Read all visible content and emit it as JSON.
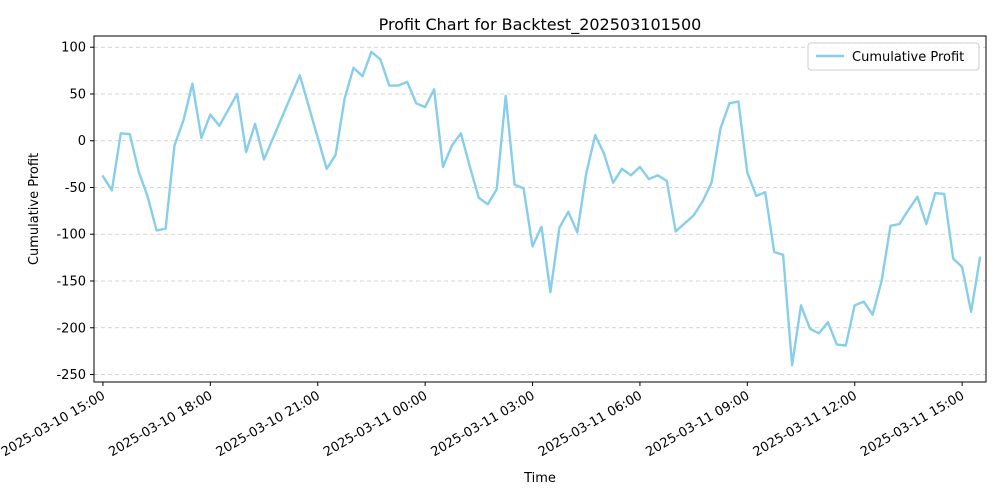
{
  "chart_data": {
    "type": "line",
    "title": "Profit Chart for Backtest_202503101500",
    "xlabel": "Time",
    "ylabel": "Cumulative Profit",
    "ylim": [
      -258,
      112
    ],
    "xlim": [
      "2025-03-10 14:45",
      "2025-03-11 15:40"
    ],
    "grid": "horizontal dashed",
    "legend_position": "top-right",
    "x_tick_labels": [
      "2025-03-10 15:00",
      "2025-03-10 18:00",
      "2025-03-10 21:00",
      "2025-03-11 00:00",
      "2025-03-11 03:00",
      "2025-03-11 06:00",
      "2025-03-11 09:00",
      "2025-03-11 12:00",
      "2025-03-11 15:00"
    ],
    "y_ticks": [
      100,
      50,
      0,
      -50,
      -100,
      -150,
      -200,
      -250
    ],
    "series": [
      {
        "name": "Cumulative Profit",
        "color": "#87ceeb",
        "points": [
          [
            "2025-03-10 15:00",
            -38
          ],
          [
            "2025-03-10 15:15",
            -53
          ],
          [
            "2025-03-10 15:30",
            8
          ],
          [
            "2025-03-10 15:45",
            7
          ],
          [
            "2025-03-10 16:00",
            -33
          ],
          [
            "2025-03-10 16:15",
            -60
          ],
          [
            "2025-03-10 16:30",
            -96
          ],
          [
            "2025-03-10 16:45",
            -94
          ],
          [
            "2025-03-10 17:00",
            -5
          ],
          [
            "2025-03-10 17:15",
            22
          ],
          [
            "2025-03-10 17:30",
            61
          ],
          [
            "2025-03-10 17:45",
            3
          ],
          [
            "2025-03-10 18:00",
            28
          ],
          [
            "2025-03-10 18:15",
            16
          ],
          [
            "2025-03-10 18:30",
            33
          ],
          [
            "2025-03-10 18:45",
            50
          ],
          [
            "2025-03-10 19:00",
            -12
          ],
          [
            "2025-03-10 19:15",
            18
          ],
          [
            "2025-03-10 19:30",
            -20
          ],
          [
            "2025-03-10 20:30",
            70
          ],
          [
            "2025-03-10 21:15",
            -30
          ],
          [
            "2025-03-10 21:30",
            -15
          ],
          [
            "2025-03-10 21:45",
            45
          ],
          [
            "2025-03-10 22:00",
            78
          ],
          [
            "2025-03-10 22:15",
            69
          ],
          [
            "2025-03-10 22:30",
            95
          ],
          [
            "2025-03-10 22:45",
            87
          ],
          [
            "2025-03-10 23:00",
            59
          ],
          [
            "2025-03-10 23:15",
            59
          ],
          [
            "2025-03-10 23:30",
            63
          ],
          [
            "2025-03-10 23:45",
            40
          ],
          [
            "2025-03-11 00:00",
            36
          ],
          [
            "2025-03-11 00:15",
            55
          ],
          [
            "2025-03-11 00:30",
            -28
          ],
          [
            "2025-03-11 00:45",
            -5
          ],
          [
            "2025-03-11 01:00",
            8
          ],
          [
            "2025-03-11 01:15",
            -28
          ],
          [
            "2025-03-11 01:30",
            -61
          ],
          [
            "2025-03-11 01:45",
            -68
          ],
          [
            "2025-03-11 02:00",
            -52
          ],
          [
            "2025-03-11 02:15",
            48
          ],
          [
            "2025-03-11 02:30",
            -47
          ],
          [
            "2025-03-11 02:45",
            -51
          ],
          [
            "2025-03-11 03:00",
            -113
          ],
          [
            "2025-03-11 03:15",
            -92
          ],
          [
            "2025-03-11 03:30",
            -162
          ],
          [
            "2025-03-11 03:45",
            -93
          ],
          [
            "2025-03-11 04:00",
            -76
          ],
          [
            "2025-03-11 04:15",
            -98
          ],
          [
            "2025-03-11 04:30",
            -35
          ],
          [
            "2025-03-11 04:45",
            6
          ],
          [
            "2025-03-11 05:00",
            -14
          ],
          [
            "2025-03-11 05:15",
            -45
          ],
          [
            "2025-03-11 05:30",
            -30
          ],
          [
            "2025-03-11 05:45",
            -37
          ],
          [
            "2025-03-11 06:00",
            -28
          ],
          [
            "2025-03-11 06:15",
            -41
          ],
          [
            "2025-03-11 06:30",
            -37
          ],
          [
            "2025-03-11 06:45",
            -43
          ],
          [
            "2025-03-11 07:00",
            -97
          ],
          [
            "2025-03-11 07:30",
            -80
          ],
          [
            "2025-03-11 07:45",
            -65
          ],
          [
            "2025-03-11 08:00",
            -45
          ],
          [
            "2025-03-11 08:15",
            13
          ],
          [
            "2025-03-11 08:30",
            40
          ],
          [
            "2025-03-11 08:45",
            42
          ],
          [
            "2025-03-11 09:00",
            -34
          ],
          [
            "2025-03-11 09:15",
            -59
          ],
          [
            "2025-03-11 09:30",
            -55
          ],
          [
            "2025-03-11 09:45",
            -119
          ],
          [
            "2025-03-11 10:00",
            -122
          ],
          [
            "2025-03-11 10:15",
            -240
          ],
          [
            "2025-03-11 10:30",
            -176
          ],
          [
            "2025-03-11 10:45",
            -201
          ],
          [
            "2025-03-11 11:00",
            -206
          ],
          [
            "2025-03-11 11:15",
            -194
          ],
          [
            "2025-03-11 11:30",
            -218
          ],
          [
            "2025-03-11 11:45",
            -219
          ],
          [
            "2025-03-11 12:00",
            -176
          ],
          [
            "2025-03-11 12:15",
            -172
          ],
          [
            "2025-03-11 12:30",
            -186
          ],
          [
            "2025-03-11 12:45",
            -150
          ],
          [
            "2025-03-11 13:00",
            -91
          ],
          [
            "2025-03-11 13:15",
            -89
          ],
          [
            "2025-03-11 13:30",
            -74
          ],
          [
            "2025-03-11 13:45",
            -60
          ],
          [
            "2025-03-11 14:00",
            -89
          ],
          [
            "2025-03-11 14:15",
            -56
          ],
          [
            "2025-03-11 14:30",
            -57
          ],
          [
            "2025-03-11 14:45",
            -126
          ],
          [
            "2025-03-11 15:00",
            -135
          ],
          [
            "2025-03-11 15:15",
            -183
          ],
          [
            "2025-03-11 15:30",
            -125
          ]
        ]
      }
    ]
  }
}
